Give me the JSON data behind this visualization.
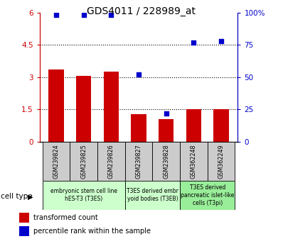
{
  "title": "GDS4011 / 228989_at",
  "samples": [
    "GSM239824",
    "GSM239825",
    "GSM239826",
    "GSM239827",
    "GSM239828",
    "GSM362248",
    "GSM362249"
  ],
  "bar_values": [
    3.35,
    3.05,
    3.25,
    1.3,
    1.05,
    1.5,
    1.5
  ],
  "percentile_values": [
    98,
    98,
    98,
    52,
    22,
    77,
    78
  ],
  "bar_color": "#cc0000",
  "dot_color": "#0000cc",
  "ylim_left": [
    0,
    6
  ],
  "ylim_right": [
    0,
    100
  ],
  "yticks_left": [
    0,
    1.5,
    3.0,
    4.5,
    6.0
  ],
  "ytick_labels_left": [
    "0",
    "1.5",
    "3",
    "4.5",
    "6"
  ],
  "ytick_labels_right": [
    "0",
    "25",
    "50",
    "75",
    "100%"
  ],
  "groups": [
    {
      "label": "embryonic stem cell line\nhES-T3 (T3ES)",
      "start": 0,
      "end": 2,
      "color": "#ccffcc"
    },
    {
      "label": "T3ES derived embr\nyoid bodies (T3EB)",
      "start": 3,
      "end": 4,
      "color": "#ccffcc"
    },
    {
      "label": "T3ES derived\npancreatic islet-like\ncells (T3pi)",
      "start": 5,
      "end": 6,
      "color": "#99ee99"
    }
  ],
  "legend_bar_label": "transformed count",
  "legend_dot_label": "percentile rank within the sample",
  "cell_type_label": "cell type",
  "sample_bg_color": "#cccccc",
  "bar_width": 0.55
}
